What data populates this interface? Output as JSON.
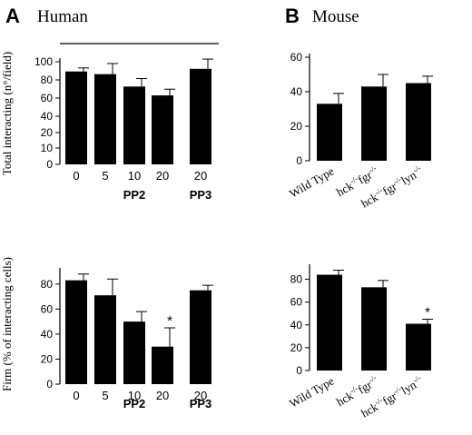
{
  "panels": {
    "A": {
      "letter": "A",
      "title": "Human"
    },
    "B": {
      "letter": "B",
      "title": "Mouse"
    }
  },
  "chart_data": [
    {
      "id": "human-total",
      "type": "bar",
      "categories": [
        "0",
        "5",
        "10",
        "20",
        "20"
      ],
      "groups": [
        {
          "label": "PP2",
          "members": [
            0,
            1,
            2,
            3
          ]
        },
        {
          "label": "PP3",
          "members": [
            4
          ]
        }
      ],
      "values": [
        89,
        86,
        72,
        62,
        92
      ],
      "errors": [
        4,
        12,
        9,
        7,
        11
      ],
      "significance": [
        "",
        "",
        "",
        "",
        ""
      ],
      "ylabel": "Total interacting (n°/field)",
      "yticks": [
        0,
        10,
        20,
        40,
        60,
        80,
        100
      ],
      "ylim": [
        0,
        100
      ],
      "top_line": true
    },
    {
      "id": "mouse-total",
      "type": "bar",
      "categories": [
        "Wild Type",
        "hck-/-fgr-/-",
        "hck-/-fgr-/-lyn-/-"
      ],
      "values": [
        33,
        43,
        45
      ],
      "errors": [
        6,
        7,
        4
      ],
      "significance": [
        "",
        "",
        ""
      ],
      "ylabel": "",
      "yticks": [
        0,
        20,
        40,
        60
      ],
      "ylim": [
        0,
        60
      ]
    },
    {
      "id": "human-firm",
      "type": "bar",
      "categories": [
        "0",
        "5",
        "10",
        "20",
        "20"
      ],
      "groups": [
        {
          "label": "PP2",
          "members": [
            0,
            1,
            2,
            3
          ]
        },
        {
          "label": "PP3",
          "members": [
            4
          ]
        }
      ],
      "values": [
        83,
        71,
        50,
        30,
        75
      ],
      "errors": [
        5,
        13,
        8,
        15,
        4
      ],
      "significance": [
        "",
        "",
        "",
        "*",
        ""
      ],
      "ylabel": "Firm  (% of interacting cells)",
      "yticks": [
        0,
        20,
        40,
        60,
        80
      ],
      "ylim": [
        0,
        90
      ]
    },
    {
      "id": "mouse-firm",
      "type": "bar",
      "categories": [
        "Wild Type",
        "hck-/-fgr-/-",
        "hck-/-fgr-/-lyn-/-"
      ],
      "values": [
        84,
        73,
        41
      ],
      "errors": [
        4,
        6,
        4
      ],
      "significance": [
        "",
        "",
        "*"
      ],
      "ylabel": "",
      "yticks": [
        0,
        20,
        40,
        60,
        80
      ],
      "ylim": [
        0,
        90
      ]
    }
  ]
}
